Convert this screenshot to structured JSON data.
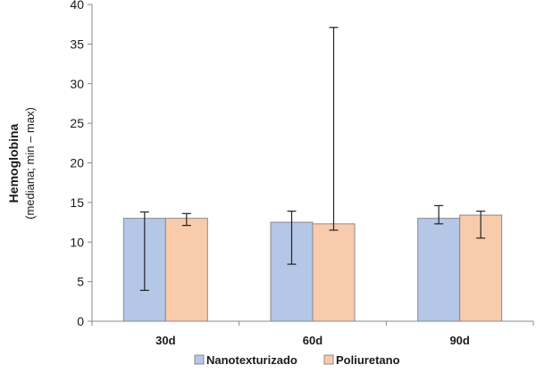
{
  "chart_data": {
    "type": "bar",
    "categories": [
      "30d",
      "60d",
      "90d"
    ],
    "ylim": [
      0,
      40
    ],
    "yticks": [
      0,
      5,
      10,
      15,
      20,
      25,
      30,
      35,
      40
    ],
    "ylabel": "Hemoglobina",
    "ylabel_sub": "(mediana;  min – max)",
    "xlabel": "",
    "title": "",
    "grid": false,
    "legend_position": "bottom",
    "series": [
      {
        "name": "Nanotexturizado",
        "color": "#b4c7e7",
        "values": [
          13.0,
          12.5,
          13.0
        ],
        "min": [
          3.9,
          7.2,
          12.3
        ],
        "max": [
          13.8,
          13.9,
          14.6
        ]
      },
      {
        "name": "Poliuretano",
        "color": "#f8cbad",
        "values": [
          13.0,
          12.3,
          13.4
        ],
        "min": [
          12.1,
          11.5,
          10.5
        ],
        "max": [
          13.6,
          37.1,
          13.9
        ]
      }
    ]
  }
}
